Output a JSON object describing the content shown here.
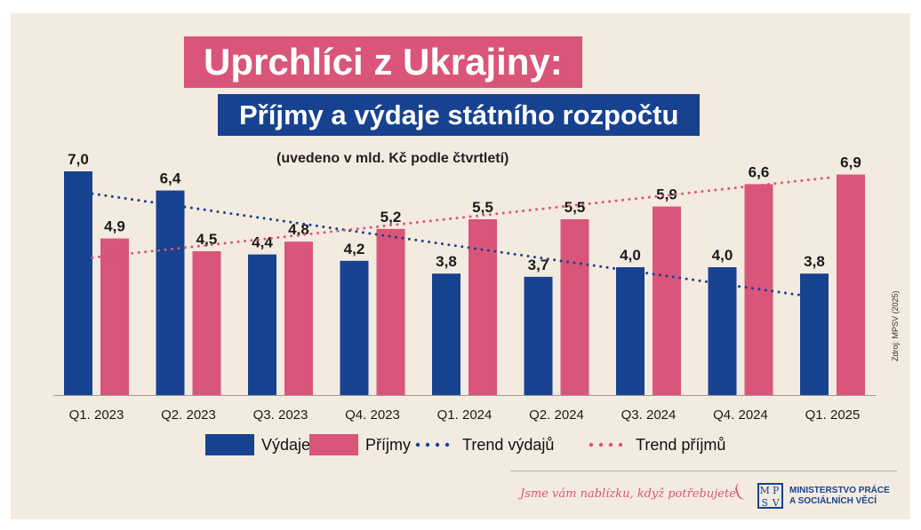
{
  "title": "Uprchlíci z Ukrajiny:",
  "subtitle": "Příjmy a výdaje státního rozpočtu",
  "note": "(uvedeno v mld. Kč podle čtvrtletí)",
  "source": "Zdroj: MPSV (2025)",
  "footer": {
    "slogan": "Jsme vám nablízku, když potřebujete",
    "logo": [
      "M",
      "P",
      "S",
      "V"
    ],
    "ministry_line1": "MINISTERSTVO PRÁCE",
    "ministry_line2": "A SOCIÁLNÍCH VĚCÍ"
  },
  "colors": {
    "vydaje": "#17428f",
    "prijmy": "#d9557a",
    "background": "#f4ebe0"
  },
  "chart_data": {
    "type": "bar",
    "categories": [
      "Q1. 2023",
      "Q2. 2023",
      "Q3. 2023",
      "Q4. 2023",
      "Q1. 2024",
      "Q2. 2024",
      "Q3. 2024",
      "Q4. 2024",
      "Q1. 2025"
    ],
    "series": [
      {
        "name": "Výdaje",
        "values": [
          7.0,
          6.4,
          4.4,
          4.2,
          3.8,
          3.7,
          4.0,
          4.0,
          3.8
        ],
        "labels": [
          "7,0",
          "6,4",
          "4,4",
          "4,2",
          "3,8",
          "3,7",
          "4,0",
          "4,0",
          "3,8"
        ]
      },
      {
        "name": "Příjmy",
        "values": [
          4.9,
          4.5,
          4.8,
          5.2,
          5.5,
          5.5,
          5.9,
          6.6,
          6.9
        ],
        "labels": [
          "4,9",
          "4,5",
          "4,8",
          "5,2",
          "5,5",
          "5,5",
          "5,9",
          "6,6",
          "6,9"
        ]
      }
    ],
    "trends": [
      {
        "name": "Trend výdajů",
        "start": 6.3,
        "end": 3.0
      },
      {
        "name": "Trend příjmů",
        "start": 4.3,
        "end": 6.8
      }
    ],
    "ylim": [
      0,
      7.0
    ],
    "grid": false,
    "legend": "bottom"
  }
}
